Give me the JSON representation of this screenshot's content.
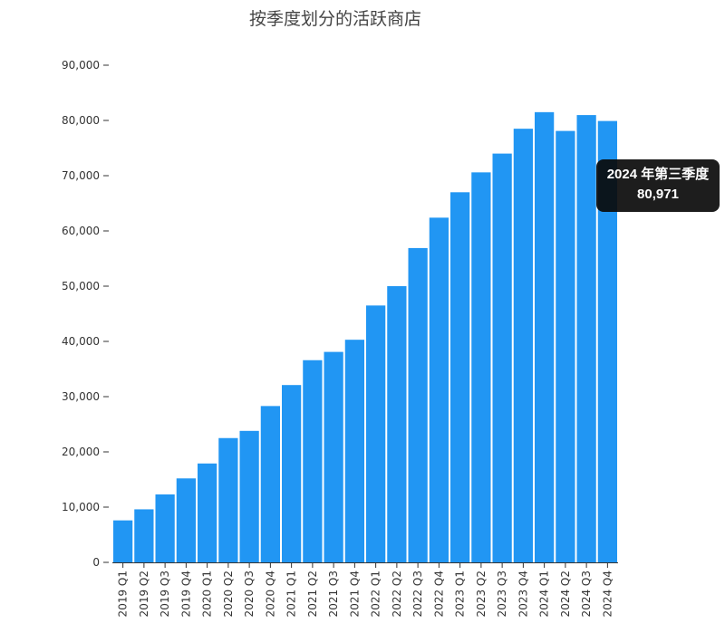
{
  "chart_data": {
    "type": "bar",
    "title": "按季度划分的活跃商店",
    "xlabel": "",
    "ylabel": "",
    "ylim": [
      0,
      90000
    ],
    "yticks": [
      0,
      10000,
      20000,
      30000,
      40000,
      50000,
      60000,
      70000,
      80000,
      90000
    ],
    "ytick_labels": [
      "0",
      "10,000",
      "20,000",
      "30,000",
      "40,000",
      "50,000",
      "60,000",
      "70,000",
      "80,000",
      "90,000"
    ],
    "categories": [
      "2019 Q1",
      "2019 Q2",
      "2019 Q3",
      "2019 Q4",
      "2020 Q1",
      "2020 Q2",
      "2020 Q3",
      "2020 Q4",
      "2021 Q1",
      "2021 Q2",
      "2021 Q3",
      "2021 Q4",
      "2022 Q1",
      "2022 Q2",
      "2022 Q3",
      "2022 Q4",
      "2023 Q1",
      "2023 Q2",
      "2023 Q3",
      "2023 Q4",
      "2024 Q1",
      "2024 Q2",
      "2024 Q3",
      "2024 Q4"
    ],
    "values": [
      7600,
      9600,
      12300,
      15200,
      17900,
      22500,
      23800,
      28300,
      32100,
      36600,
      38100,
      40300,
      46500,
      50000,
      56900,
      62400,
      67000,
      70600,
      74000,
      78500,
      81500,
      78100,
      80971,
      79900
    ],
    "grid": false,
    "bar_color": "#2196f3"
  },
  "tooltip": {
    "title": "2024 年第三季度",
    "value": "80,971"
  }
}
